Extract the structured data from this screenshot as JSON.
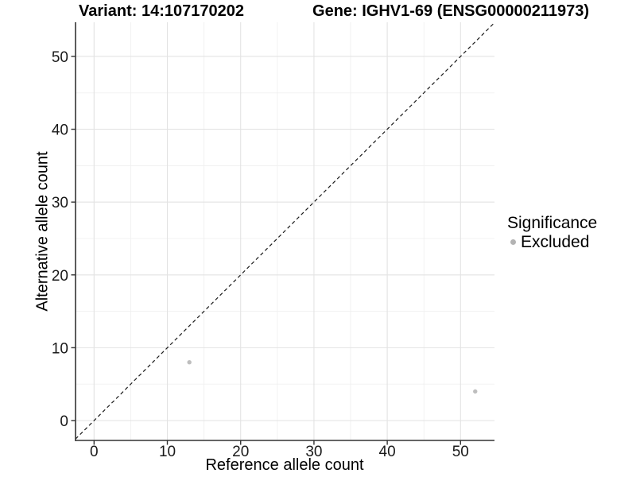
{
  "chart_data": {
    "type": "scatter",
    "title_left": "Variant: 14:107170202",
    "title_right": "Gene: IGHV1-69 (ENSG00000211973)",
    "xlabel": "Reference allele count",
    "ylabel": "Alternative allele count",
    "x_ticks": [
      0,
      10,
      20,
      30,
      40,
      50
    ],
    "y_ticks": [
      0,
      10,
      20,
      30,
      40,
      50
    ],
    "x_minor_ticks": [
      5,
      15,
      25,
      35,
      45
    ],
    "y_minor_ticks": [
      5,
      15,
      25,
      35,
      45
    ],
    "xlim": [
      -2.53,
      54.63
    ],
    "ylim": [
      -2.73,
      54.69
    ],
    "grid_on": true,
    "series": [
      {
        "name": "Excluded",
        "color": "#bebebe",
        "points": [
          {
            "x": 13,
            "y": 8
          },
          {
            "x": 52,
            "y": 4
          }
        ]
      }
    ],
    "abline": {
      "slope": 1,
      "intercept": 0,
      "linetype": "dashed",
      "color": "#1a1a1a"
    },
    "colors": {
      "major_grid": "#e3e3e3",
      "minor_grid": "#f0f0f0",
      "axis_line": "#333333",
      "point": "#bebebe",
      "legend_key": "#b3b3b3"
    },
    "legend": {
      "title": "Significance",
      "position": "right",
      "entries": [
        {
          "label": "Excluded",
          "color": "#b3b3b3"
        }
      ]
    }
  }
}
